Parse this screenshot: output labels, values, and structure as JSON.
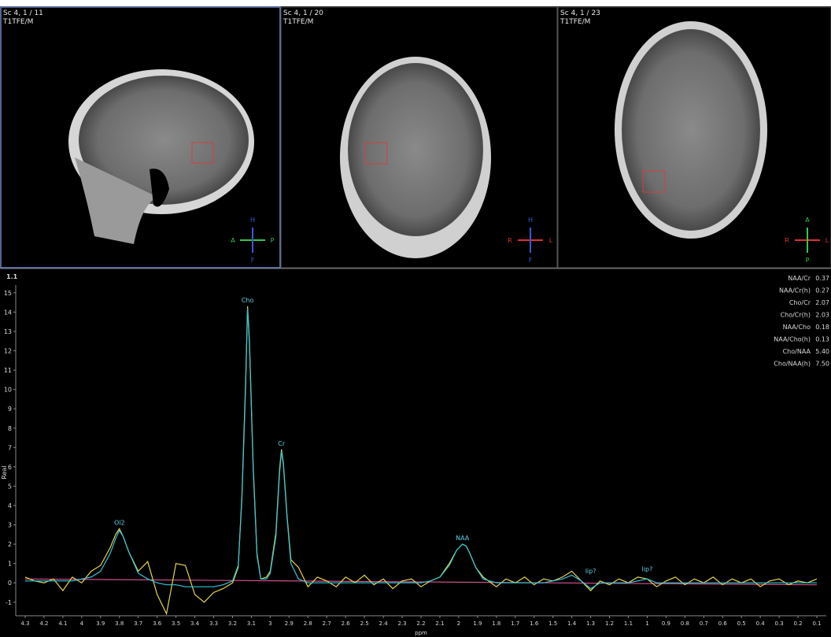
{
  "panels": [
    {
      "lines": [
        "Sc 4, 1 / 11",
        "T1TFE/M"
      ],
      "orient": {
        "top": "H",
        "left": "A",
        "right": "P",
        "bottom": "F"
      }
    },
    {
      "lines": [
        "Sc 4, 1 / 20",
        "T1TFE/M"
      ],
      "orient": {
        "top": "H",
        "left": "R",
        "right": "L",
        "bottom": "F"
      }
    },
    {
      "lines": [
        "Sc 4, 1 / 23",
        "T1TFE/M"
      ],
      "orient": {
        "top": "A",
        "left": "R",
        "right": "L",
        "bottom": "P"
      }
    }
  ],
  "chart_data": {
    "type": "line",
    "corner_label": "1.1",
    "x_label": "ppm",
    "y_label": "Real",
    "x": [
      4.3,
      4.25,
      4.2,
      4.15,
      4.1,
      4.05,
      4.0,
      3.95,
      3.9,
      3.85,
      3.82,
      3.8,
      3.78,
      3.75,
      3.7,
      3.65,
      3.6,
      3.55,
      3.5,
      3.45,
      3.4,
      3.35,
      3.3,
      3.25,
      3.2,
      3.17,
      3.15,
      3.13,
      3.12,
      3.11,
      3.09,
      3.07,
      3.05,
      3.02,
      3.0,
      2.97,
      2.95,
      2.94,
      2.93,
      2.91,
      2.89,
      2.85,
      2.8,
      2.75,
      2.7,
      2.65,
      2.6,
      2.55,
      2.5,
      2.45,
      2.4,
      2.35,
      2.3,
      2.25,
      2.2,
      2.15,
      2.1,
      2.05,
      2.01,
      1.98,
      1.96,
      1.94,
      1.91,
      1.87,
      1.8,
      1.75,
      1.7,
      1.65,
      1.6,
      1.55,
      1.5,
      1.45,
      1.4,
      1.35,
      1.3,
      1.25,
      1.2,
      1.15,
      1.1,
      1.05,
      1.0,
      0.95,
      0.9,
      0.85,
      0.8,
      0.75,
      0.7,
      0.65,
      0.6,
      0.55,
      0.5,
      0.45,
      0.4,
      0.35,
      0.3,
      0.25,
      0.2,
      0.15,
      0.1
    ],
    "series": [
      {
        "color": "#e6d64a",
        "values": [
          0.3,
          0.1,
          0.0,
          0.2,
          -0.4,
          0.3,
          0.0,
          0.6,
          0.9,
          1.8,
          2.5,
          2.8,
          2.4,
          1.6,
          0.6,
          1.1,
          -0.6,
          -1.6,
          1.0,
          0.9,
          -0.6,
          -1.0,
          -0.5,
          -0.3,
          0.0,
          0.8,
          4.5,
          10.5,
          14.3,
          12.5,
          6.0,
          1.5,
          0.2,
          0.3,
          0.6,
          2.6,
          5.9,
          6.9,
          6.2,
          3.4,
          1.2,
          0.8,
          -0.2,
          0.3,
          0.1,
          -0.2,
          0.3,
          0.0,
          0.4,
          -0.1,
          0.2,
          -0.3,
          0.1,
          0.2,
          -0.2,
          0.1,
          0.3,
          1.0,
          1.7,
          2.0,
          1.9,
          1.5,
          0.8,
          0.3,
          -0.2,
          0.2,
          0.0,
          0.3,
          -0.1,
          0.2,
          0.1,
          0.3,
          0.6,
          0.1,
          -0.4,
          0.1,
          -0.1,
          0.2,
          0.0,
          0.3,
          0.2,
          -0.2,
          0.1,
          0.3,
          -0.1,
          0.2,
          0.0,
          0.3,
          -0.1,
          0.2,
          0.0,
          0.2,
          -0.2,
          0.1,
          0.2,
          -0.1,
          0.1,
          0.0,
          0.2
        ]
      },
      {
        "color": "#34c6d8",
        "values": [
          0.1,
          0.1,
          0.1,
          0.1,
          0.1,
          0.1,
          0.2,
          0.3,
          0.6,
          1.5,
          2.3,
          2.7,
          2.4,
          1.6,
          0.5,
          0.2,
          0.0,
          -0.1,
          -0.1,
          -0.2,
          -0.2,
          -0.2,
          -0.2,
          -0.1,
          0.1,
          0.9,
          4.3,
          10.2,
          14.2,
          12.3,
          5.8,
          1.4,
          0.2,
          0.2,
          0.5,
          2.4,
          5.7,
          6.8,
          6.1,
          3.3,
          1.0,
          0.2,
          0.0,
          0.0,
          0.0,
          0.0,
          0.0,
          0.0,
          0.0,
          0.0,
          0.0,
          0.0,
          0.0,
          0.0,
          0.0,
          0.1,
          0.3,
          0.9,
          1.7,
          2.0,
          1.9,
          1.5,
          0.8,
          0.2,
          0.0,
          0.0,
          0.0,
          0.0,
          0.0,
          0.0,
          0.1,
          0.2,
          0.4,
          0.1,
          -0.3,
          0.0,
          0.0,
          0.0,
          0.0,
          0.1,
          0.2,
          0.0,
          0.0,
          0.0,
          0.0,
          0.0,
          0.0,
          0.0,
          0.0,
          0.0,
          0.0,
          0.0,
          0.0,
          0.0,
          0.0,
          0.0,
          0.0,
          0.0,
          0.0
        ]
      },
      {
        "color": "#d0508f",
        "x": [
          4.3,
          0.1
        ],
        "values": [
          0.2,
          -0.1
        ]
      }
    ],
    "annotations": [
      {
        "text": "Ol2",
        "x": 3.8,
        "y": 2.8
      },
      {
        "text": "Cho",
        "x": 3.12,
        "y": 14.3
      },
      {
        "text": "Cr",
        "x": 2.94,
        "y": 6.9
      },
      {
        "text": "NAA",
        "x": 1.98,
        "y": 2.0
      },
      {
        "text": "lip?",
        "x": 1.3,
        "y": 0.3
      },
      {
        "text": "lip?",
        "x": 1.0,
        "y": 0.4
      }
    ],
    "ratios": [
      {
        "name": "NAA/Cr",
        "value": "0.37"
      },
      {
        "name": "NAA/Cr(h)",
        "value": "0.27"
      },
      {
        "name": "Cho/Cr",
        "value": "2.07"
      },
      {
        "name": "Cho/Cr(h)",
        "value": "2.03"
      },
      {
        "name": "NAA/Cho",
        "value": "0.18"
      },
      {
        "name": "NAA/Cho(h)",
        "value": "0.13"
      },
      {
        "name": "Cho/NAA",
        "value": "5.40"
      },
      {
        "name": "Cho/NAA(h)",
        "value": "7.50"
      }
    ],
    "xlim": [
      4.35,
      0.05
    ],
    "ylim": [
      -1.7,
      15.4
    ],
    "xticks": [
      4.3,
      4.2,
      4.1,
      4,
      3.9,
      3.8,
      3.7,
      3.6,
      3.5,
      3.4,
      3.3,
      3.2,
      3.1,
      3,
      2.9,
      2.8,
      2.7,
      2.6,
      2.5,
      2.4,
      2.3,
      2.2,
      2.1,
      2,
      1.9,
      1.8,
      1.7,
      1.6,
      1.5,
      1.4,
      1.3,
      1.2,
      1.1,
      1,
      0.9,
      0.8,
      0.7,
      0.6,
      0.5,
      0.4,
      0.3,
      0.2,
      0.1
    ],
    "yticks": [
      -1,
      0,
      1,
      2,
      3,
      4,
      5,
      6,
      7,
      8,
      9,
      10,
      11,
      12,
      13,
      14,
      15
    ]
  }
}
